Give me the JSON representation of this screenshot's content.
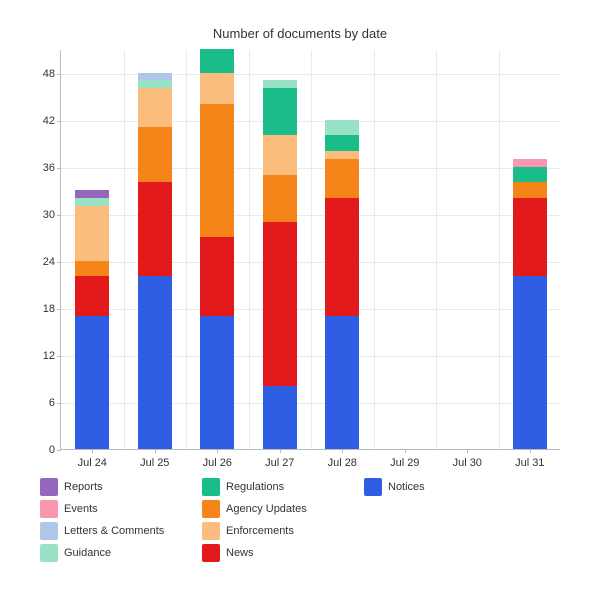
{
  "chart": {
    "type": "stacked-bar",
    "title": "Number of documents by date",
    "title_fontsize": 13,
    "label_fontsize": 11,
    "background_color": "#ffffff",
    "grid_color": "#eaeaea",
    "axis_color": "#bbbbbb",
    "bar_width_ratio": 0.55,
    "categories": [
      "Jul 24",
      "Jul 25",
      "Jul 26",
      "Jul 27",
      "Jul 28",
      "Jul 29",
      "Jul 30",
      "Jul 31"
    ],
    "ylim": [
      0,
      51
    ],
    "yticks": [
      0,
      6,
      12,
      18,
      24,
      30,
      36,
      42,
      48
    ],
    "series": [
      {
        "key": "reports",
        "label": "Reports",
        "color": "#9467bd"
      },
      {
        "key": "events",
        "label": "Events",
        "color": "#f898b0"
      },
      {
        "key": "letters",
        "label": "Letters & Comments",
        "color": "#aec7e8"
      },
      {
        "key": "guidance",
        "label": "Guidance",
        "color": "#99e2c6"
      },
      {
        "key": "regulations",
        "label": "Regulations",
        "color": "#1abc8a"
      },
      {
        "key": "agency",
        "label": "Agency Updates",
        "color": "#f58518"
      },
      {
        "key": "enforce",
        "label": "Enforcements",
        "color": "#fabd7e"
      },
      {
        "key": "news",
        "label": "News",
        "color": "#e31a1c"
      },
      {
        "key": "notices",
        "label": "Notices",
        "color": "#2f5ee5"
      }
    ],
    "stack_order": [
      "notices",
      "news",
      "agency",
      "enforce",
      "regulations",
      "guidance",
      "letters",
      "events",
      "reports"
    ],
    "data": [
      {
        "notices": 17,
        "news": 5,
        "agency": 2,
        "enforce": 7,
        "regulations": 0,
        "guidance": 1,
        "letters": 0,
        "events": 0,
        "reports": 1
      },
      {
        "notices": 22,
        "news": 12,
        "agency": 7,
        "enforce": 5,
        "regulations": 0,
        "guidance": 1,
        "letters": 1,
        "events": 0,
        "reports": 0
      },
      {
        "notices": 17,
        "news": 10,
        "agency": 17,
        "enforce": 4,
        "regulations": 3,
        "guidance": 0,
        "letters": 0,
        "events": 0,
        "reports": 0
      },
      {
        "notices": 8,
        "news": 21,
        "agency": 6,
        "enforce": 5,
        "regulations": 6,
        "guidance": 1,
        "letters": 0,
        "events": 0,
        "reports": 0
      },
      {
        "notices": 17,
        "news": 15,
        "agency": 5,
        "enforce": 1,
        "regulations": 2,
        "guidance": 2,
        "letters": 0,
        "events": 0,
        "reports": 0
      },
      {
        "notices": 0,
        "news": 0,
        "agency": 0,
        "enforce": 0,
        "regulations": 0,
        "guidance": 0,
        "letters": 0,
        "events": 0,
        "reports": 0
      },
      {
        "notices": 0,
        "news": 0,
        "agency": 0,
        "enforce": 0,
        "regulations": 0,
        "guidance": 0,
        "letters": 0,
        "events": 0,
        "reports": 0
      },
      {
        "notices": 22,
        "news": 10,
        "agency": 2,
        "enforce": 0,
        "regulations": 2,
        "guidance": 0,
        "letters": 0,
        "events": 1,
        "reports": 0
      }
    ]
  }
}
